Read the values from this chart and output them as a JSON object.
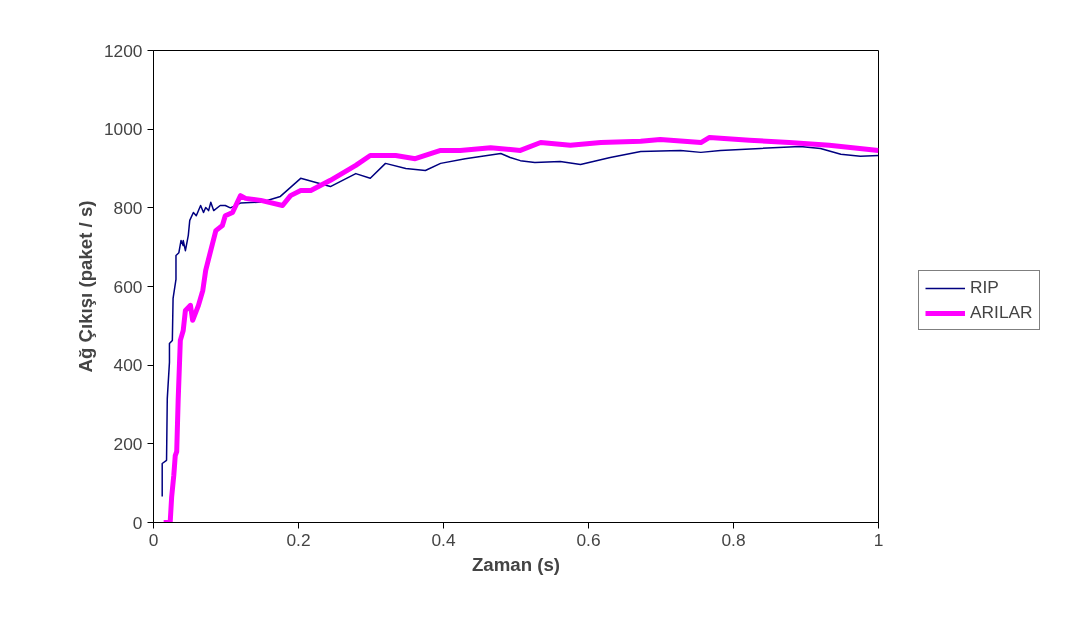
{
  "chart_data": {
    "type": "line",
    "xlabel": "Zaman (s)",
    "ylabel": "Ağ Çıkışı (paket / s)",
    "xlim": [
      0,
      1
    ],
    "ylim": [
      0,
      1200
    ],
    "xticks": [
      0,
      0.2,
      0.4,
      0.6,
      0.8,
      1
    ],
    "yticks": [
      0,
      200,
      400,
      600,
      800,
      1000,
      1200
    ],
    "grid": false,
    "legend": "right",
    "marker": "none",
    "line_style": "solid",
    "series": [
      {
        "name": "RIP",
        "color": "#000080",
        "x": [
          0.012,
          0.012,
          0.018,
          0.019,
          0.022,
          0.022,
          0.026,
          0.027,
          0.031,
          0.031,
          0.035,
          0.038,
          0.041,
          0.041,
          0.044,
          0.048,
          0.05,
          0.055,
          0.059,
          0.065,
          0.069,
          0.072,
          0.076,
          0.079,
          0.083,
          0.092,
          0.099,
          0.106,
          0.12,
          0.15,
          0.175,
          0.203,
          0.244,
          0.279,
          0.299,
          0.32,
          0.348,
          0.375,
          0.396,
          0.43,
          0.479,
          0.492,
          0.506,
          0.526,
          0.561,
          0.589,
          0.63,
          0.672,
          0.727,
          0.755,
          0.782,
          0.837,
          0.892,
          0.92,
          0.948,
          0.975,
          1.0
        ],
        "values": [
          66,
          150,
          158,
          315,
          407,
          455,
          463,
          570,
          618,
          679,
          686,
          717,
          704,
          717,
          691,
          730,
          768,
          788,
          780,
          806,
          788,
          801,
          793,
          814,
          793,
          806,
          806,
          800,
          812,
          815,
          829,
          875,
          854,
          887,
          875,
          913,
          900,
          895,
          913,
          925,
          938,
          928,
          920,
          915,
          918,
          910,
          928,
          943,
          946,
          941,
          946,
          951,
          956,
          951,
          936,
          931,
          933
        ]
      },
      {
        "name": "ARILAR",
        "color": "#ff00ff",
        "x": [
          0.014,
          0.023,
          0.025,
          0.028,
          0.03,
          0.032,
          0.034,
          0.037,
          0.041,
          0.044,
          0.051,
          0.054,
          0.062,
          0.068,
          0.072,
          0.079,
          0.086,
          0.095,
          0.099,
          0.109,
          0.12,
          0.127,
          0.148,
          0.178,
          0.189,
          0.203,
          0.217,
          0.244,
          0.279,
          0.299,
          0.334,
          0.361,
          0.396,
          0.423,
          0.465,
          0.506,
          0.534,
          0.575,
          0.617,
          0.672,
          0.699,
          0.755,
          0.767,
          0.822,
          0.877,
          0.932,
          1.0
        ],
        "values": [
          0,
          0,
          64,
          120,
          170,
          180,
          310,
          463,
          488,
          539,
          552,
          514,
          552,
          590,
          641,
          692,
          742,
          755,
          780,
          788,
          831,
          824,
          819,
          806,
          831,
          844,
          844,
          870,
          908,
          933,
          933,
          925,
          946,
          946,
          953,
          946,
          966,
          959,
          966,
          969,
          974,
          966,
          979,
          972,
          966,
          959,
          946
        ]
      }
    ]
  }
}
